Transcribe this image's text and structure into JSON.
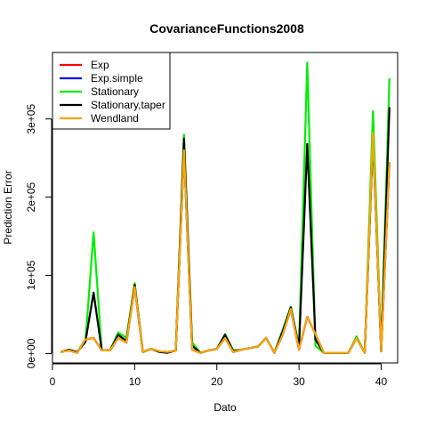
{
  "chart_data": {
    "type": "line",
    "title": "CovarianceFunctions2008",
    "xlabel": "Dato",
    "ylabel": "Prediction Error",
    "xlim": [
      0,
      42
    ],
    "ylim": [
      -12000,
      385000
    ],
    "x_ticks": [
      0,
      10,
      20,
      30,
      40
    ],
    "y_ticks": [
      0,
      100000,
      200000,
      300000
    ],
    "y_tick_labels": [
      "0e+00",
      "1e+05",
      "2e+05",
      "3e+05"
    ],
    "legend_position": "top-left",
    "x": [
      1,
      2,
      3,
      4,
      5,
      6,
      7,
      8,
      9,
      10,
      11,
      12,
      13,
      14,
      15,
      16,
      17,
      18,
      19,
      20,
      21,
      22,
      23,
      24,
      25,
      26,
      27,
      28,
      29,
      30,
      31,
      32,
      33,
      34,
      35,
      36,
      37,
      38,
      39,
      40,
      41
    ],
    "series": [
      {
        "name": "Exp",
        "color": "#ff0000",
        "values": [
          2000,
          4000,
          1000,
          18000,
          20000,
          4000,
          4000,
          20000,
          14000,
          85000,
          2000,
          6000,
          3000,
          2000,
          4000,
          260000,
          5000,
          1000,
          4000,
          6000,
          20000,
          2000,
          5000,
          7000,
          9000,
          20000,
          1000,
          24000,
          57000,
          5000,
          47000,
          25000,
          1000,
          1000,
          1000,
          1000,
          20000,
          1000,
          282000,
          3000,
          245000
        ]
      },
      {
        "name": "Exp.simple",
        "color": "#0000ff",
        "values": [
          2000,
          4000,
          1000,
          18000,
          20000,
          4000,
          4000,
          20000,
          14000,
          85000,
          2000,
          6000,
          3000,
          2000,
          4000,
          260000,
          5000,
          1000,
          4000,
          6000,
          20000,
          2000,
          5000,
          7000,
          9000,
          20000,
          1000,
          24000,
          57000,
          5000,
          47000,
          25000,
          1000,
          1000,
          1000,
          1000,
          20000,
          1000,
          282000,
          3000,
          245000
        ]
      },
      {
        "name": "Stationary",
        "color": "#00ee00",
        "values": [
          2000,
          4000,
          2000,
          15000,
          155000,
          4000,
          4000,
          27000,
          20000,
          90000,
          2000,
          6000,
          3000,
          2000,
          4000,
          280000,
          14000,
          1000,
          4000,
          6000,
          25000,
          4000,
          5000,
          7000,
          9000,
          20000,
          1000,
          30000,
          60000,
          10000,
          372000,
          10000,
          1000,
          1000,
          1000,
          1000,
          22000,
          1000,
          310000,
          3000,
          352000
        ]
      },
      {
        "name": "Stationary,taper",
        "color": "#000000",
        "values": [
          2000,
          5000,
          2000,
          15000,
          78000,
          4000,
          4000,
          24000,
          16000,
          88000,
          2000,
          6000,
          2000,
          1000,
          4000,
          275000,
          10000,
          1000,
          4000,
          6000,
          24000,
          3000,
          5000,
          7000,
          9000,
          20000,
          1000,
          28000,
          59000,
          8000,
          268000,
          18000,
          1000,
          1000,
          1000,
          1000,
          20000,
          1000,
          275000,
          3000,
          315000
        ]
      },
      {
        "name": "Wendland",
        "color": "#ffa500",
        "values": [
          2000,
          4000,
          1000,
          18000,
          20000,
          4000,
          4000,
          20000,
          14000,
          85000,
          2000,
          6000,
          3000,
          2000,
          4000,
          260000,
          5000,
          1000,
          4000,
          6000,
          20000,
          2000,
          5000,
          7000,
          9000,
          20000,
          1000,
          24000,
          57000,
          5000,
          47000,
          25000,
          1000,
          1000,
          1000,
          1000,
          20000,
          1000,
          282000,
          3000,
          245000
        ]
      }
    ]
  }
}
